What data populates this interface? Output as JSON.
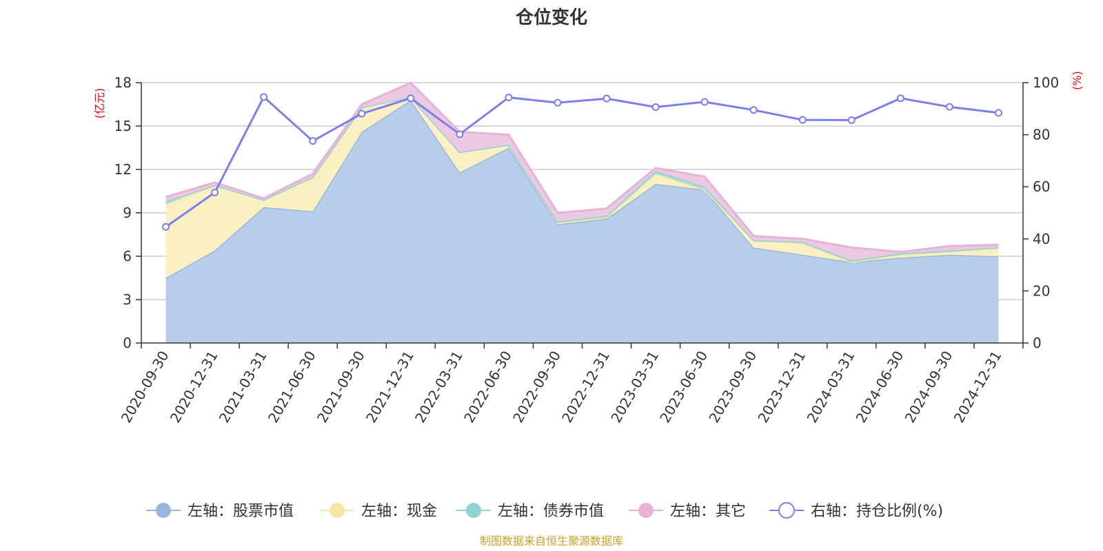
{
  "chart_data": {
    "type": "area",
    "title": "仓位变化",
    "source_note": "制图数据来自恒生聚源数据库",
    "categories": [
      "2020-09-30",
      "2020-12-31",
      "2021-03-31",
      "2021-06-30",
      "2021-09-30",
      "2021-12-31",
      "2022-03-31",
      "2022-06-30",
      "2022-09-30",
      "2022-12-31",
      "2023-03-31",
      "2023-06-30",
      "2023-09-30",
      "2023-12-31",
      "2024-03-31",
      "2024-06-30",
      "2024-09-30",
      "2024-12-31"
    ],
    "left_axis": {
      "unit": "(亿元)",
      "range": [
        0,
        18
      ],
      "ticks": [
        0,
        3,
        6,
        9,
        12,
        15,
        18
      ]
    },
    "right_axis": {
      "unit": "(%)",
      "range": [
        0,
        100
      ],
      "ticks": [
        0,
        20,
        40,
        60,
        80,
        100
      ]
    },
    "stacked_series": [
      {
        "name": "左轴：股票市值",
        "color": "#9ab6de",
        "fill": "#b8cdea",
        "values": [
          4.5,
          6.4,
          9.4,
          9.1,
          14.6,
          16.8,
          11.8,
          13.5,
          8.2,
          8.6,
          11.0,
          10.6,
          6.6,
          6.1,
          5.6,
          5.9,
          6.1,
          6.0
        ]
      },
      {
        "name": "左轴：现金",
        "color": "#f5e6a3",
        "fill": "#faf0c2",
        "values": [
          5.1,
          4.5,
          0.5,
          2.3,
          1.7,
          0.2,
          1.4,
          0.2,
          0.1,
          0.1,
          0.7,
          0.0,
          0.5,
          0.8,
          0.0,
          0.2,
          0.2,
          0.6
        ]
      },
      {
        "name": "左轴：债券市值",
        "color": "#8fd3d3",
        "fill": "#a8dcd7",
        "values": [
          0.2,
          0.0,
          0.0,
          0.1,
          0.0,
          0.0,
          0.0,
          0.0,
          0.1,
          0.1,
          0.2,
          0.2,
          0.0,
          0.1,
          0.1,
          0.1,
          0.1,
          0.0
        ]
      },
      {
        "name": "左轴：其它",
        "color": "#e6b3d6",
        "fill": "#ecc9e2",
        "values": [
          0.3,
          0.2,
          0.1,
          0.2,
          0.2,
          1.0,
          1.4,
          0.7,
          0.6,
          0.5,
          0.2,
          0.7,
          0.3,
          0.2,
          0.9,
          0.1,
          0.3,
          0.2
        ]
      }
    ],
    "line_series": {
      "name": "右轴：持仓比例(%)",
      "color": "#7a7ef0",
      "values": [
        44.6,
        57.8,
        94.5,
        77.6,
        88.1,
        94.0,
        80.2,
        94.3,
        92.3,
        93.9,
        90.6,
        92.6,
        89.5,
        85.7,
        85.6,
        94.0,
        90.7,
        88.4
      ]
    },
    "grid": true,
    "legend_position": "bottom"
  }
}
